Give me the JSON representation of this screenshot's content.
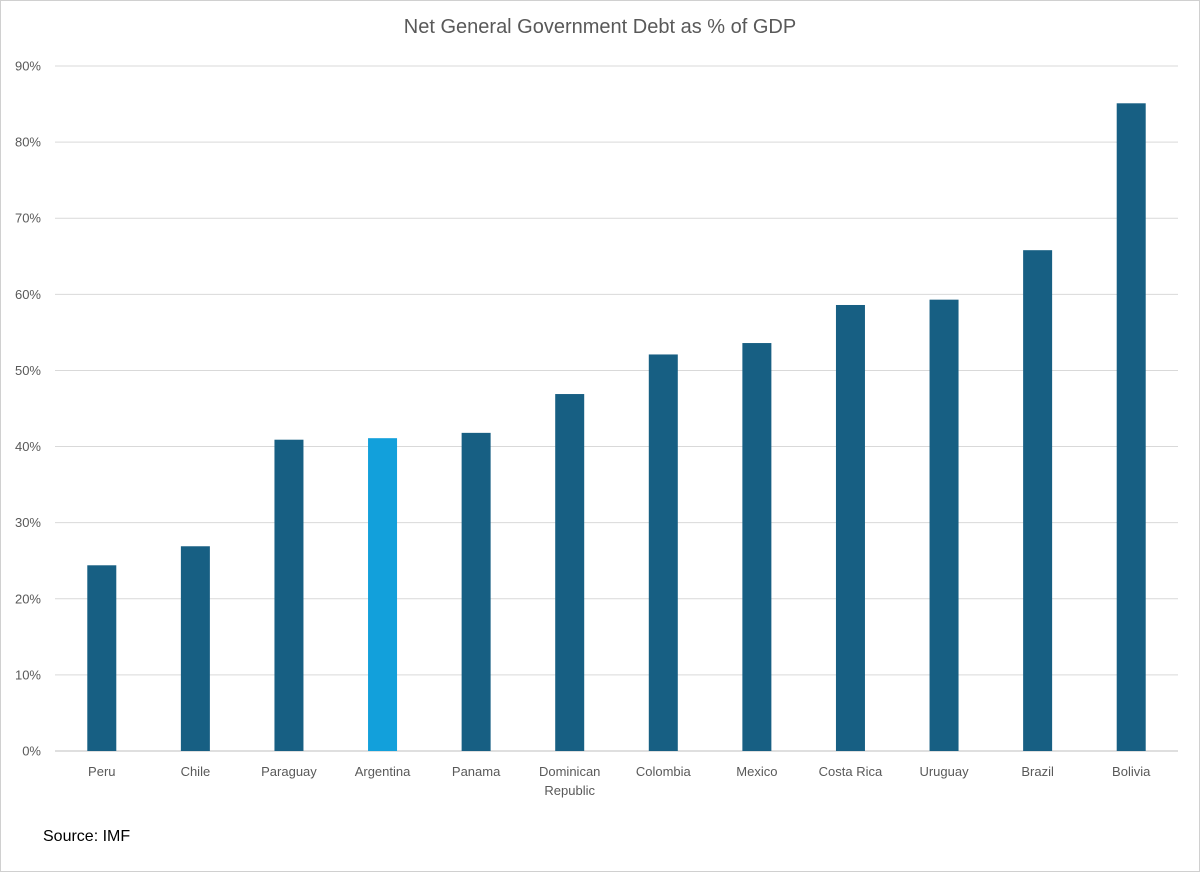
{
  "chart_data": {
    "type": "bar",
    "title": "Net General Government Debt as % of GDP",
    "categories": [
      "Peru",
      "Chile",
      "Paraguay",
      "Argentina",
      "Panama",
      "Dominican Republic",
      "Colombia",
      "Mexico",
      "Costa Rica",
      "Uruguay",
      "Brazil",
      "Bolivia"
    ],
    "values": [
      24.4,
      26.9,
      40.9,
      41.1,
      41.8,
      46.9,
      52.1,
      53.6,
      58.6,
      59.3,
      65.8,
      85.1
    ],
    "ylim": [
      0,
      90
    ],
    "yticks": [
      0,
      10,
      20,
      30,
      40,
      50,
      60,
      70,
      80,
      90
    ],
    "ytick_labels": [
      "0%",
      "10%",
      "20%",
      "30%",
      "40%",
      "50%",
      "60%",
      "70%",
      "80%",
      "90%"
    ],
    "grid": true,
    "colors": {
      "bar": "#175f83",
      "highlight": "#12a0db",
      "gridline": "#d9d9d9",
      "axis": "#bfbfbf"
    },
    "highlight_category": "Argentina"
  },
  "source": "Source: IMF"
}
